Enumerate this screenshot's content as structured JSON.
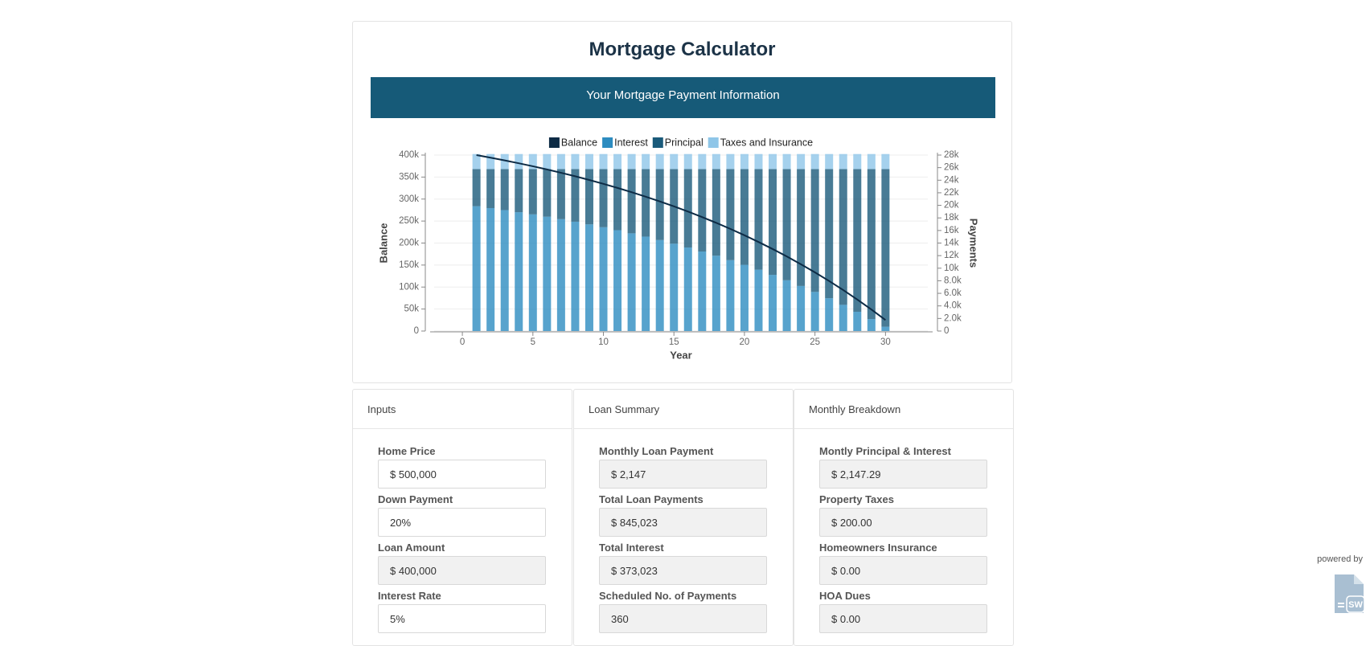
{
  "header": {
    "title": "Mortgage Calculator",
    "banner": "Your Mortgage Payment Information"
  },
  "chart_data": {
    "type": "bar",
    "stacked": true,
    "x_label": "Year",
    "y_label": "Balance",
    "y2_label": "Payments",
    "x": [
      1,
      2,
      3,
      4,
      5,
      6,
      7,
      8,
      9,
      10,
      11,
      12,
      13,
      14,
      15,
      16,
      17,
      18,
      19,
      20,
      21,
      22,
      23,
      24,
      25,
      26,
      27,
      28,
      29,
      30
    ],
    "xlim": [
      -2,
      33
    ],
    "xticks": [
      0,
      5,
      10,
      15,
      20,
      25,
      30
    ],
    "ylim": [
      0,
      400000
    ],
    "yticks": [
      {
        "value": 0,
        "label": "0"
      },
      {
        "value": 50000,
        "label": "50k"
      },
      {
        "value": 100000,
        "label": "100k"
      },
      {
        "value": 150000,
        "label": "150k"
      },
      {
        "value": 200000,
        "label": "200k"
      },
      {
        "value": 250000,
        "label": "250k"
      },
      {
        "value": 300000,
        "label": "300k"
      },
      {
        "value": 350000,
        "label": "350k"
      },
      {
        "value": 400000,
        "label": "400k"
      }
    ],
    "y2lim": [
      0,
      28000
    ],
    "y2ticks": [
      {
        "value": 0,
        "label": "0"
      },
      {
        "value": 2000,
        "label": "2.0k"
      },
      {
        "value": 4000,
        "label": "4.0k"
      },
      {
        "value": 6000,
        "label": "6.0k"
      },
      {
        "value": 8000,
        "label": "8.0k"
      },
      {
        "value": 10000,
        "label": "10k"
      },
      {
        "value": 12000,
        "label": "12k"
      },
      {
        "value": 14000,
        "label": "14k"
      },
      {
        "value": 16000,
        "label": "16k"
      },
      {
        "value": 18000,
        "label": "18k"
      },
      {
        "value": 20000,
        "label": "20k"
      },
      {
        "value": 22000,
        "label": "22k"
      },
      {
        "value": 24000,
        "label": "24k"
      },
      {
        "value": 26000,
        "label": "26k"
      },
      {
        "value": 28000,
        "label": "28k"
      }
    ],
    "grid": true,
    "legend": "top",
    "series": [
      {
        "name": "Balance",
        "type": "line",
        "color": "#0d2b45",
        "values": [
          400000,
          394099,
          387896,
          381375,
          374520,
          367315,
          359741,
          351780,
          343411,
          334614,
          325367,
          315648,
          305430,
          294691,
          283401,
          271534,
          259060,
          245948,
          232165,
          217676,
          202447,
          186439,
          169611,
          151922,
          133329,
          113784,
          93239,
          71643,
          48942,
          25080
        ]
      },
      {
        "name": "Interest",
        "axis": "y2",
        "color": "#2d8cc0",
        "values": [
          19866,
          19564,
          19246,
          18912,
          18562,
          18193,
          17806,
          17398,
          16970,
          16520,
          16048,
          15549,
          15028,
          14477,
          13900,
          13293,
          12655,
          11984,
          11278,
          10538,
          9759,
          8939,
          8078,
          7174,
          6222,
          5222,
          4171,
          3066,
          1905,
          687
        ]
      },
      {
        "name": "Principal",
        "axis": "y2",
        "color": "#1a5a7a",
        "values": [
          5901,
          6203,
          6521,
          6855,
          7205,
          7574,
          7961,
          8369,
          8797,
          9247,
          9719,
          10218,
          10739,
          11290,
          11867,
          12474,
          13112,
          13783,
          14489,
          15229,
          16008,
          16828,
          17689,
          18593,
          19545,
          20545,
          21596,
          22701,
          23862,
          25080
        ]
      },
      {
        "name": "Taxes and Insurance",
        "axis": "y2",
        "color": "#8fc6e8",
        "values": [
          2400,
          2400,
          2400,
          2400,
          2400,
          2400,
          2400,
          2400,
          2400,
          2400,
          2400,
          2400,
          2400,
          2400,
          2400,
          2400,
          2400,
          2400,
          2400,
          2400,
          2400,
          2400,
          2400,
          2400,
          2400,
          2400,
          2400,
          2400,
          2400,
          2400
        ]
      }
    ]
  },
  "panels": [
    {
      "title": "Inputs",
      "fields": [
        {
          "label": "Home Price",
          "value": "$ 500,000"
        },
        {
          "label": "Down Payment",
          "value": "20%"
        },
        {
          "label": "Loan Amount",
          "value": "$ 400,000"
        },
        {
          "label": "Interest Rate",
          "value": "5%"
        }
      ]
    },
    {
      "title": "Loan Summary",
      "fields": [
        {
          "label": "Monthly Loan Payment",
          "value": "$ 2,147"
        },
        {
          "label": "Total Loan Payments",
          "value": "$ 845,023"
        },
        {
          "label": "Total Interest",
          "value": "$ 373,023"
        },
        {
          "label": "Scheduled No. of Payments",
          "value": "360"
        }
      ]
    },
    {
      "title": "Monthly Breakdown",
      "fields": [
        {
          "label": "Montly Principal & Interest",
          "value": "$ 2,147.29"
        },
        {
          "label": "Property Taxes",
          "value": "$ 200.00"
        },
        {
          "label": "Homeowners Insurance",
          "value": "$ 0.00"
        },
        {
          "label": "HOA Dues",
          "value": "$ 0.00"
        }
      ]
    }
  ],
  "footer": {
    "powered_by": "powered by",
    "logo_text": "SW"
  }
}
